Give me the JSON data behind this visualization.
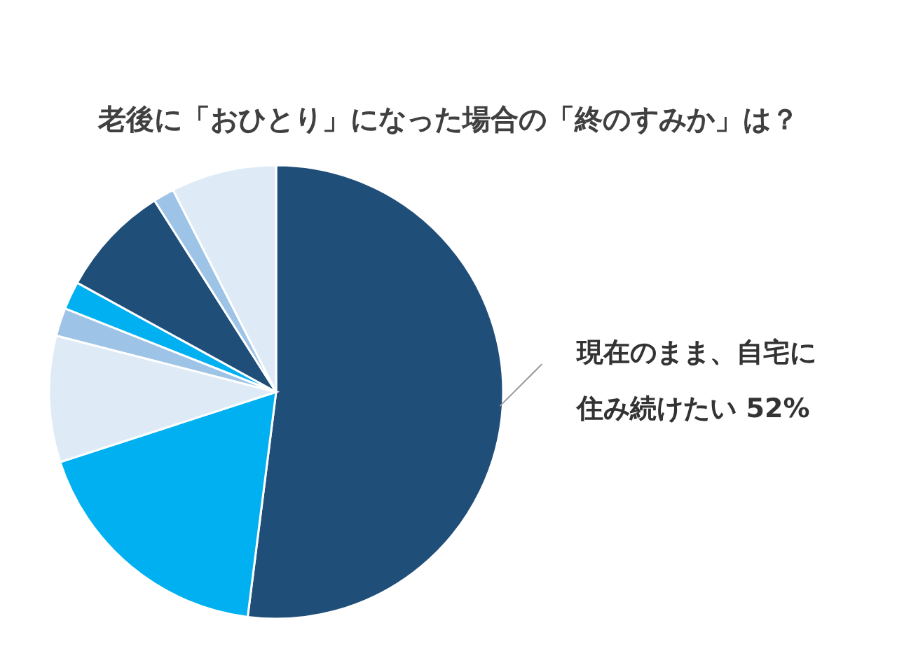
{
  "chart_data": {
    "type": "pie",
    "title": "老後に「おひとり」になった場合の「終のすみか」は？",
    "categories": [
      "現在のまま、自宅に住み続けたい",
      null,
      null,
      null,
      null,
      null,
      null,
      null
    ],
    "values": [
      52,
      18,
      9,
      2,
      2,
      8,
      1.5,
      7.5
    ],
    "colors": [
      "#1f4e79",
      "#00b0f0",
      "#deebf7",
      "#9dc3e6",
      "#00b0f0",
      "#1f4e79",
      "#9dc3e6",
      "#deebf7"
    ],
    "value_labels": [
      "52%",
      null,
      null,
      null,
      null,
      null,
      null,
      null
    ]
  }
}
